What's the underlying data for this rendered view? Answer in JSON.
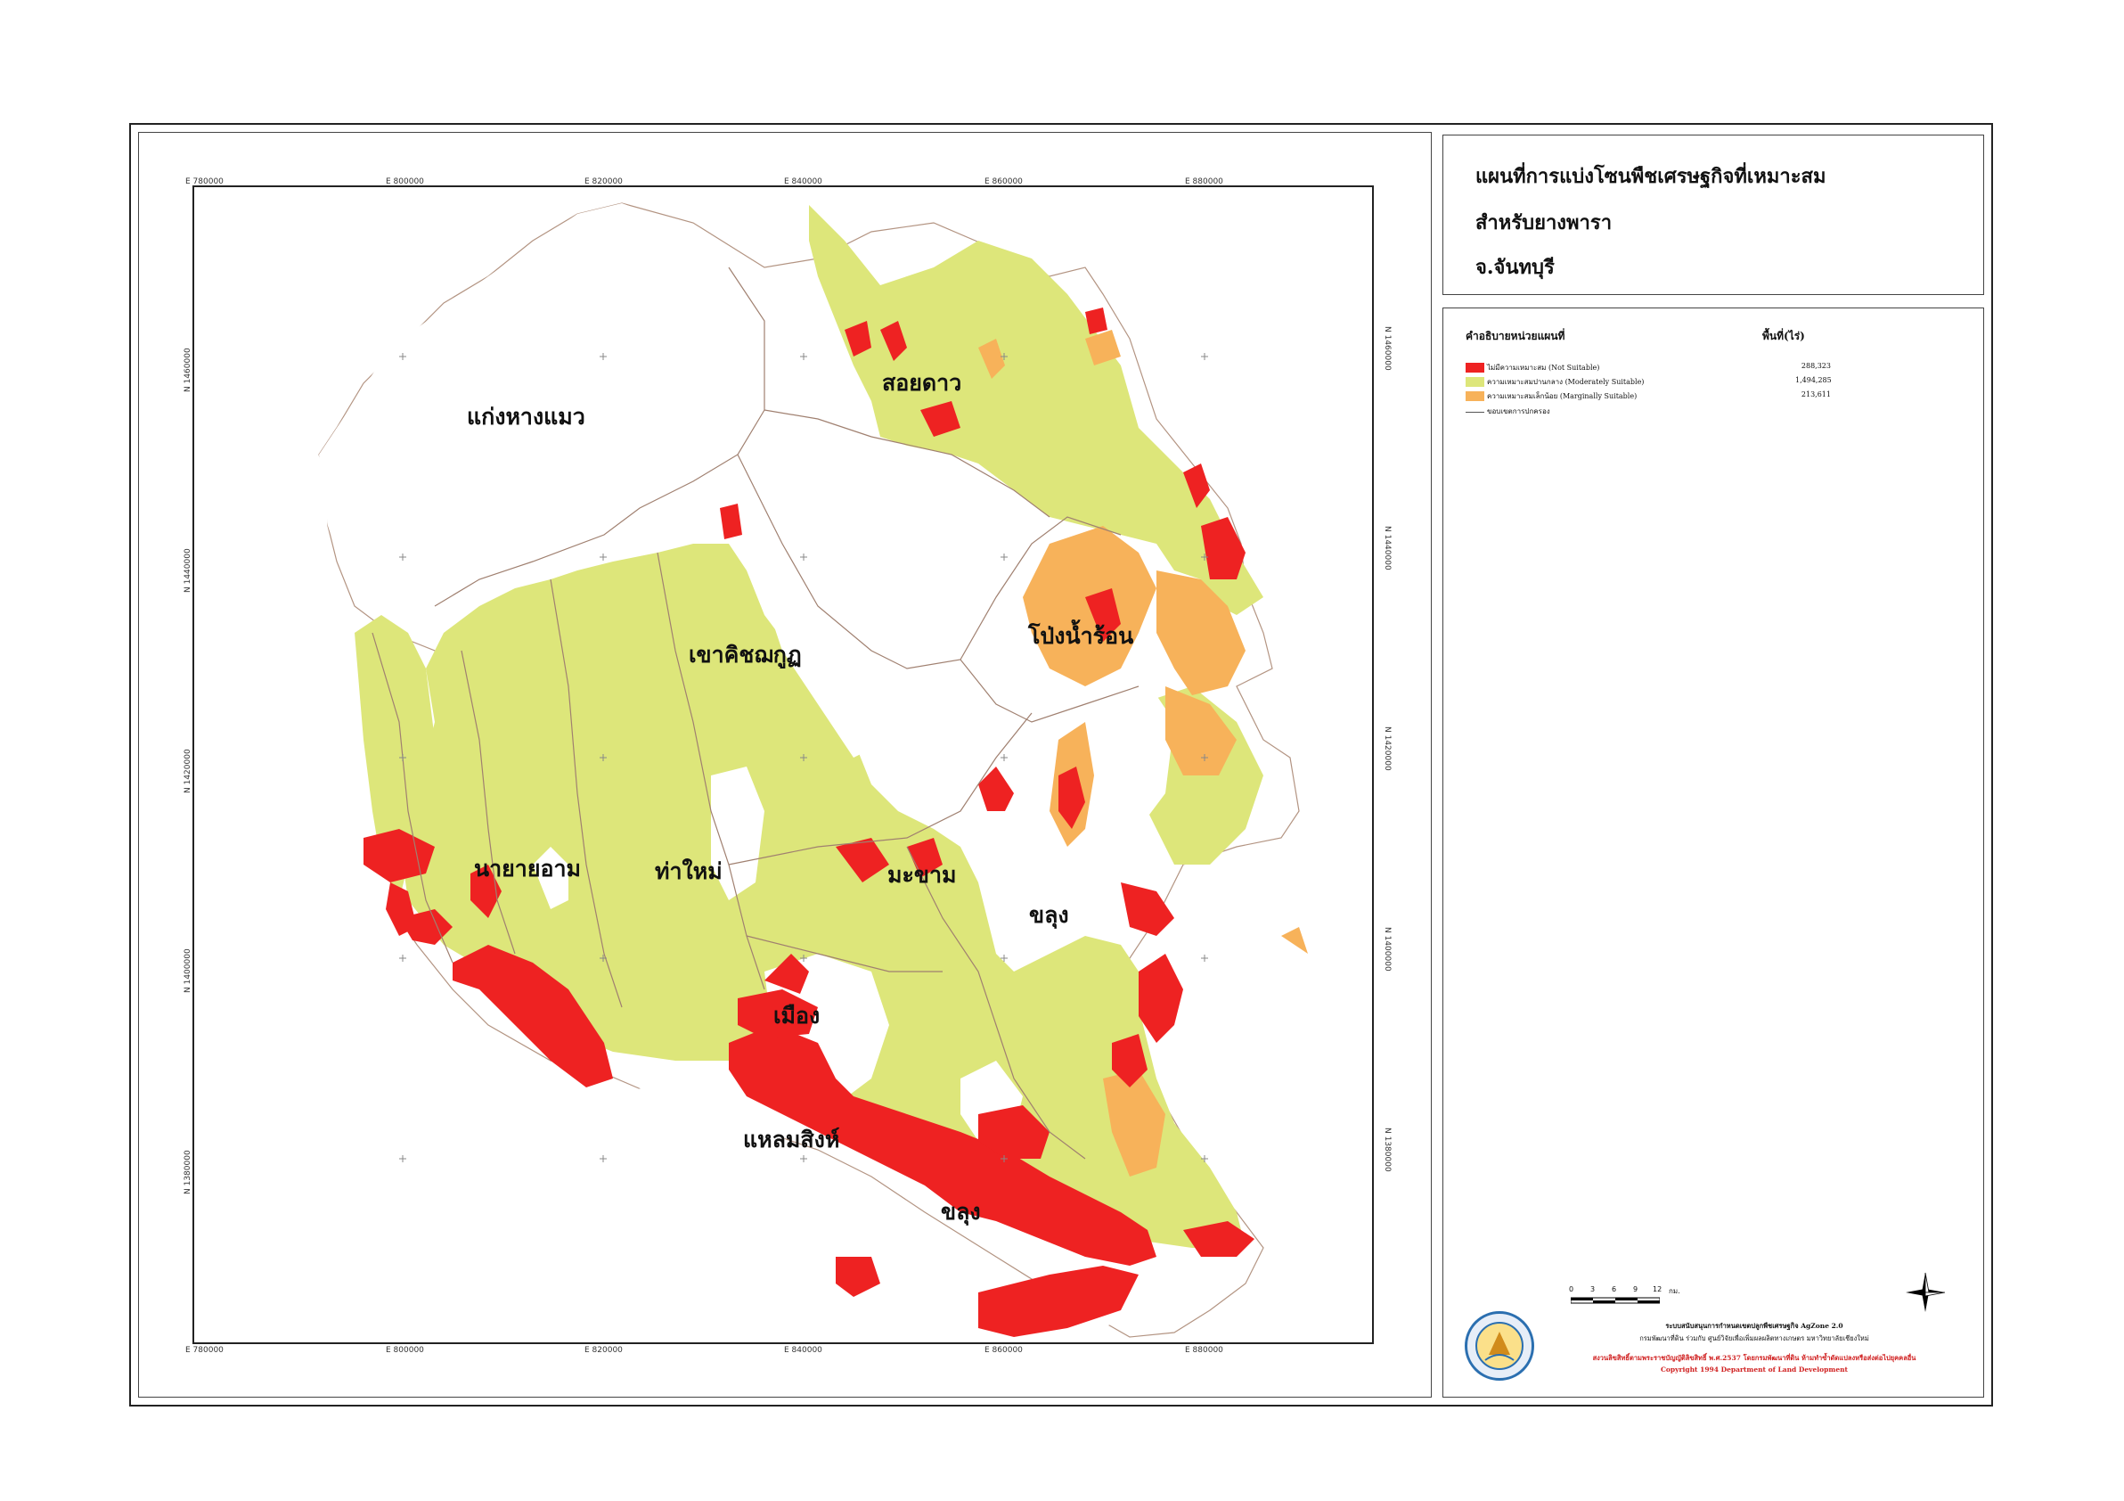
{
  "title": {
    "line1": "แผนที่การแบ่งโซนพืชเศรษฐกิจที่เหมาะสม",
    "line2": "สำหรับยางพารา",
    "line3": "จ.จันทบุรี"
  },
  "legend": {
    "heading_left": "คำอธิบายหน่วยแผนที่",
    "heading_right": "พื้นที่(ไร่)",
    "items": [
      {
        "label": "ไม่มีความเหมาะสม (Not Suitable)",
        "value": "288,323",
        "color": "#ee2222"
      },
      {
        "label": "ความเหมาะสมปานกลาง (Moderately Suitable)",
        "value": "1,494,285",
        "color": "#dde67a"
      },
      {
        "label": "ความเหมาะสมเล็กน้อย (Marginally Suitable)",
        "value": "213,611",
        "color": "#f7b25a"
      },
      {
        "label": "ขอบเขตการปกครอง",
        "value": "",
        "color": "#777777"
      }
    ]
  },
  "scale": {
    "ticks": [
      "0",
      "3",
      "6",
      "9",
      "12"
    ],
    "unit": "กม."
  },
  "credits": {
    "line1": "ระบบสนับสนุนการกำหนดเขตปลูกพืชเศรษฐกิจ AgZone 2.0",
    "line2": "กรมพัฒนาที่ดิน ร่วมกับ ศูนย์วิจัยเพื่อเพิ่มผลผลิตทางเกษตร มหาวิทยาลัยเชียงใหม่",
    "line3": "สงวนลิขสิทธิ์ตามพระราชบัญญัติลิขสิทธิ์ พ.ศ.2537 โดยกรมพัฒนาที่ดิน ห้ามทำซ้ำดัดแปลงหรือส่งต่อไปยุคคลอื่น",
    "line4": "Copyright 1994  Department of Land Development"
  },
  "grid": {
    "x_labels": [
      "E 780000",
      "E 800000",
      "E 820000",
      "E 840000",
      "E 860000",
      "E 880000"
    ],
    "y_labels": [
      "N 1460000",
      "N 1440000",
      "N 1420000",
      "N 1400000",
      "N 1380000"
    ]
  },
  "districts": [
    "แก่งหางแมว",
    "สอยดาว",
    "เขาคิชฌกูฏ",
    "โป่งน้ำร้อน",
    "นายายอาม",
    "ท่าใหม่",
    "มะขาม",
    "ขลุง",
    "เมือง",
    "แหลมสิงห์",
    "ขลุง"
  ],
  "colors": {
    "not_suitable": "#ee2222",
    "moderate": "#dde67a",
    "marginal": "#f7b25a",
    "boundary": "#a08070"
  }
}
